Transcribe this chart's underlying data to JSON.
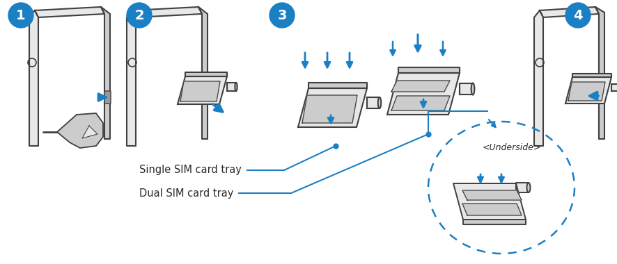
{
  "background_color": "#ffffff",
  "blue_color": "#1b7fc4",
  "dark_gray": "#404040",
  "med_gray": "#888888",
  "light_gray": "#cccccc",
  "lighter_gray": "#e8e8e8",
  "white": "#ffffff",
  "step_numbers": [
    "1",
    "2",
    "3",
    "4"
  ],
  "label_single": "Single SIM card tray",
  "label_dual": "Dual SIM card tray",
  "underside_label": "<Underside>",
  "figsize": [
    8.86,
    3.8
  ],
  "dpi": 100
}
